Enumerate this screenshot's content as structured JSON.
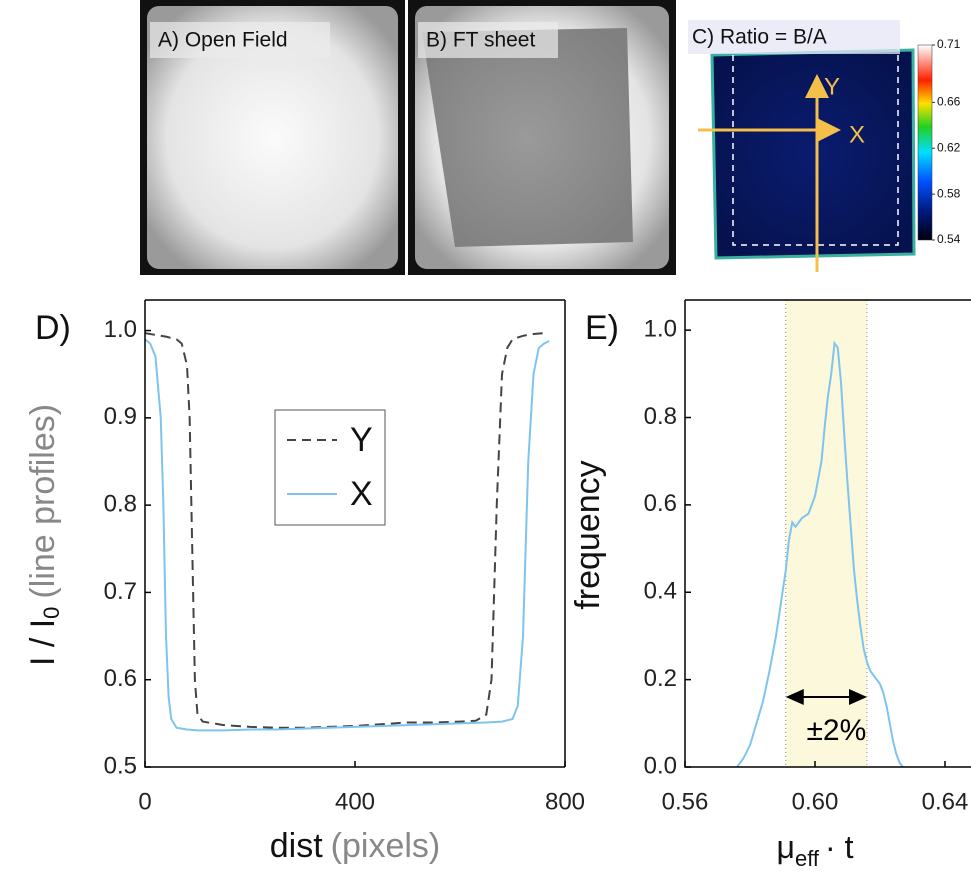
{
  "chart_data": [
    {
      "type": "image",
      "title": "A) Open Field"
    },
    {
      "type": "image",
      "title": "B) FT sheet"
    },
    {
      "type": "heatmap",
      "title": "C) Ratio = B/A",
      "clim": [
        0.54,
        0.71
      ],
      "cticks": [
        0.54,
        0.58,
        0.62,
        0.66,
        0.71
      ],
      "annotations": [
        "Y",
        "X"
      ]
    },
    {
      "type": "line",
      "panel_label": "D)",
      "xlabel": "dist",
      "xlabel_note": "(pixels)",
      "ylabel": "I / I",
      "ylabel_sub": "0",
      "ylabel_note": "(line profiles)",
      "xlim": [
        0,
        800
      ],
      "xticks": [
        0,
        400,
        800
      ],
      "ylim": [
        0.5,
        1.035
      ],
      "yticks": [
        0.5,
        0.6,
        0.7,
        0.8,
        0.9,
        {
          "value": 1,
          "label": "1.0"
        }
      ],
      "series": [
        {
          "name": "Y",
          "color": "#444444",
          "dashed": true,
          "x": [
            0,
            20,
            40,
            60,
            70,
            80,
            85,
            90,
            95,
            100,
            110,
            150,
            200,
            250,
            300,
            350,
            400,
            450,
            500,
            550,
            600,
            630,
            650,
            660,
            670,
            680,
            690,
            700,
            720,
            740,
            760
          ],
          "values": [
            0.997,
            0.995,
            0.993,
            0.99,
            0.985,
            0.96,
            0.9,
            0.75,
            0.6,
            0.56,
            0.552,
            0.548,
            0.546,
            0.545,
            0.545,
            0.546,
            0.547,
            0.549,
            0.551,
            0.551,
            0.552,
            0.553,
            0.56,
            0.6,
            0.8,
            0.95,
            0.98,
            0.99,
            0.994,
            0.996,
            0.997
          ]
        },
        {
          "name": "X",
          "color": "#7fc4ef",
          "dashed": false,
          "x": [
            0,
            10,
            20,
            30,
            35,
            40,
            45,
            50,
            60,
            80,
            100,
            150,
            200,
            250,
            300,
            350,
            400,
            450,
            500,
            550,
            600,
            650,
            680,
            700,
            710,
            720,
            730,
            740,
            750,
            760,
            770
          ],
          "values": [
            0.99,
            0.985,
            0.97,
            0.9,
            0.8,
            0.65,
            0.58,
            0.555,
            0.545,
            0.543,
            0.542,
            0.542,
            0.543,
            0.543,
            0.544,
            0.545,
            0.546,
            0.547,
            0.548,
            0.549,
            0.55,
            0.551,
            0.552,
            0.555,
            0.57,
            0.65,
            0.85,
            0.95,
            0.98,
            0.985,
            0.988
          ]
        }
      ]
    },
    {
      "type": "line",
      "panel_label": "E)",
      "xlabel": "μ",
      "xlabel_sub": "eff",
      "xlabel_note": "· t",
      "ylabel": "frequency",
      "xlim": [
        0.56,
        0.648
      ],
      "xticks": [
        0.56,
        {
          "value": 0.6,
          "label": "0.60"
        },
        0.64
      ],
      "ylim": [
        0,
        1.069
      ],
      "yticks": [
        {
          "value": 0,
          "label": "0.0"
        },
        0.2,
        0.4,
        0.6,
        0.8,
        {
          "value": 1,
          "label": "1.0"
        }
      ],
      "band": [
        0.591,
        0.616
      ],
      "annotation": "±2%",
      "series": [
        {
          "color": "#7fc4ef",
          "dashed": false,
          "x": [
            0.576,
            0.578,
            0.58,
            0.582,
            0.584,
            0.586,
            0.588,
            0.59,
            0.591,
            0.592,
            0.593,
            0.594,
            0.595,
            0.596,
            0.598,
            0.6,
            0.602,
            0.603,
            0.604,
            0.605,
            0.606,
            0.607,
            0.608,
            0.609,
            0.61,
            0.611,
            0.612,
            0.613,
            0.614,
            0.615,
            0.616,
            0.617,
            0.618,
            0.619,
            0.62,
            0.621,
            0.622,
            0.623,
            0.624,
            0.625,
            0.626,
            0.627
          ],
          "values": [
            0,
            0.02,
            0.05,
            0.1,
            0.15,
            0.22,
            0.3,
            0.4,
            0.45,
            0.52,
            0.56,
            0.55,
            0.56,
            0.57,
            0.58,
            0.62,
            0.7,
            0.78,
            0.85,
            0.9,
            0.97,
            0.96,
            0.88,
            0.76,
            0.65,
            0.55,
            0.45,
            0.38,
            0.32,
            0.27,
            0.24,
            0.22,
            0.21,
            0.2,
            0.19,
            0.17,
            0.14,
            0.1,
            0.06,
            0.03,
            0.01,
            0
          ]
        }
      ]
    }
  ]
}
